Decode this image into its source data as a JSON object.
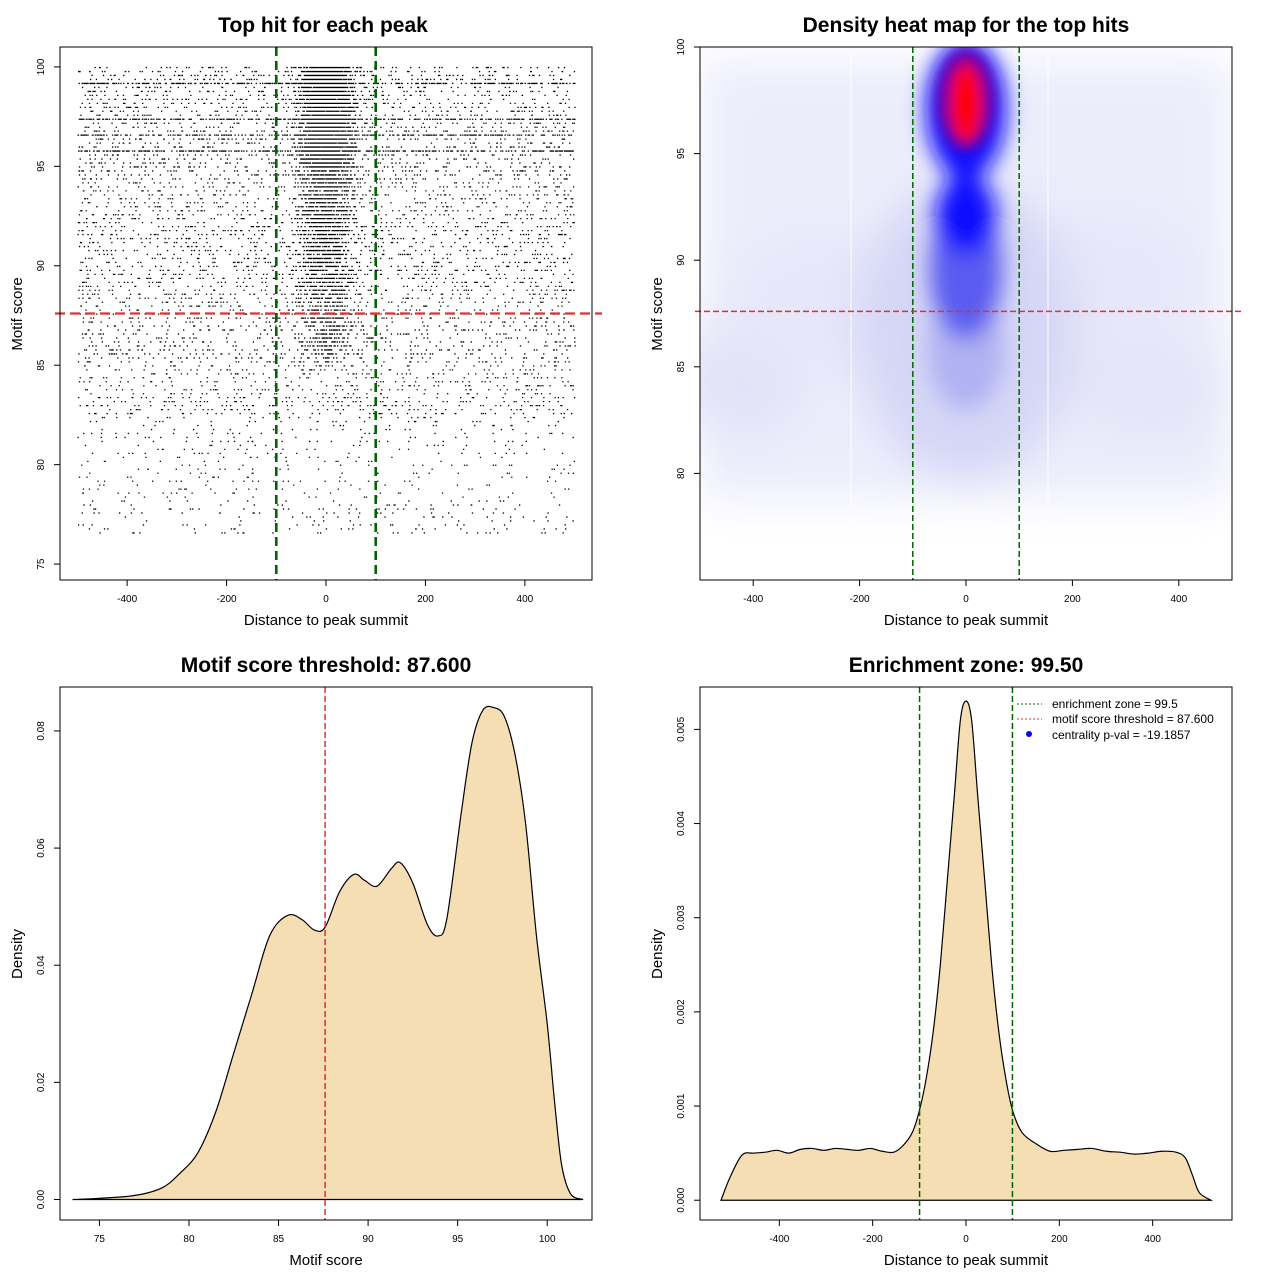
{
  "figure": {
    "panels": [
      {
        "title": "Top hit for each peak",
        "xlabel": "Distance to peak summit",
        "ylabel": "Motif score"
      },
      {
        "title": "Density heat map for the top hits",
        "xlabel": "Distance to peak summit",
        "ylabel": "Motif score"
      },
      {
        "title": "Motif score threshold: 87.600",
        "xlabel": "Motif score",
        "ylabel": "Density"
      },
      {
        "title": "Enrichment zone: 99.50",
        "xlabel": "Distance to peak summit",
        "ylabel": "Density"
      }
    ],
    "legend": [
      {
        "label": "enrichment zone = 99.5",
        "color": "#006400",
        "style": "dotted-line"
      },
      {
        "label": "motif score threshold = 87.600",
        "color": "#e03030",
        "style": "dotted-line"
      },
      {
        "label": "centrality p-val = -19.1857",
        "color": "#0000ff",
        "style": "point"
      }
    ],
    "colors": {
      "enrichment": "#006400",
      "threshold": "#e03030",
      "fill": "#f5deb3",
      "heat_low": "#ffffff",
      "heat_mid": "#0000ff",
      "heat_high": "#ff0000"
    }
  },
  "chart_data": [
    {
      "type": "scatter",
      "title": "Top hit for each peak",
      "xlabel": "Distance to peak summit",
      "ylabel": "Motif score",
      "xlim": [
        -535,
        535
      ],
      "ylim": [
        74.2,
        101.0
      ],
      "xticks": [
        -400,
        -200,
        0,
        200,
        400
      ],
      "yticks": [
        75,
        80,
        85,
        90,
        95,
        100
      ],
      "x_range_of_points": [
        -500,
        500
      ],
      "y_range_of_points": [
        76.3,
        100
      ],
      "vlines": [
        -100,
        100
      ],
      "hline": 87.6,
      "grid": false
    },
    {
      "type": "heatmap",
      "title": "Density heat map for the top hits",
      "xlabel": "Distance to peak summit",
      "ylabel": "Motif score",
      "xlim": [
        -500,
        500
      ],
      "ylim": [
        75.0,
        100.0
      ],
      "xticks": [
        -400,
        -200,
        0,
        200,
        400
      ],
      "yticks": [
        80,
        85,
        90,
        95,
        100
      ],
      "hotspot": {
        "x": 0,
        "y": 97.5
      },
      "secondary_hotspot": {
        "x": 0,
        "y": 92
      },
      "vlines": [
        -100,
        100
      ],
      "hline": 87.6,
      "grid": false
    },
    {
      "type": "area",
      "title": "Motif score threshold: 87.600",
      "xlabel": "Motif score",
      "ylabel": "Density",
      "xlim": [
        72.8,
        102.5
      ],
      "ylim": [
        -0.0035,
        0.0875
      ],
      "xticks": [
        75,
        80,
        85,
        90,
        95,
        100
      ],
      "yticks": [
        0.0,
        0.02,
        0.04,
        0.06,
        0.08
      ],
      "ytick_labels": [
        "0.00",
        "0.02",
        "0.04",
        "0.06",
        "0.08"
      ],
      "x": [
        73.5,
        75,
        77,
        78.5,
        79.5,
        80.5,
        81.5,
        82.5,
        83.5,
        84.5,
        85.5,
        86.3,
        87,
        87.6,
        88.4,
        89.2,
        89.8,
        90.5,
        91.3,
        91.8,
        92.5,
        93.3,
        93.9,
        94.4,
        95.2,
        95.8,
        96.4,
        97.0,
        97.6,
        98.2,
        98.8,
        99.4,
        100.0,
        100.4,
        100.8,
        101.3,
        102.0
      ],
      "y": [
        0.0,
        0.0002,
        0.0007,
        0.002,
        0.0045,
        0.008,
        0.015,
        0.025,
        0.035,
        0.045,
        0.0485,
        0.0478,
        0.046,
        0.0465,
        0.0525,
        0.0555,
        0.0545,
        0.0535,
        0.0565,
        0.0575,
        0.054,
        0.047,
        0.045,
        0.048,
        0.066,
        0.078,
        0.0835,
        0.084,
        0.0825,
        0.076,
        0.064,
        0.045,
        0.03,
        0.017,
        0.006,
        0.001,
        0.0
      ],
      "vline": 87.6,
      "grid": false
    },
    {
      "type": "area",
      "title": "Enrichment zone: 99.50",
      "xlabel": "Distance to peak summit",
      "ylabel": "Density",
      "xlim": [
        -570,
        570
      ],
      "ylim": [
        -0.00021,
        0.00545
      ],
      "xticks": [
        -400,
        -200,
        0,
        200,
        400
      ],
      "yticks": [
        0.0,
        0.001,
        0.002,
        0.003,
        0.004,
        0.005
      ],
      "ytick_labels": [
        "0.000",
        "0.001",
        "0.002",
        "0.003",
        "0.004",
        "0.005"
      ],
      "x": [
        -525,
        -505,
        -480,
        -455,
        -430,
        -405,
        -380,
        -355,
        -330,
        -305,
        -280,
        -255,
        -230,
        -205,
        -180,
        -155,
        -135,
        -115,
        -100,
        -85,
        -70,
        -55,
        -40,
        -25,
        -12,
        0,
        12,
        25,
        40,
        55,
        70,
        85,
        100,
        120,
        150,
        180,
        210,
        240,
        270,
        300,
        330,
        360,
        390,
        420,
        450,
        470,
        485,
        500,
        525
      ],
      "y": [
        0.0,
        0.00025,
        0.00048,
        0.0005,
        0.00051,
        0.00053,
        0.0005,
        0.00054,
        0.00055,
        0.00053,
        0.00055,
        0.00054,
        0.00053,
        0.00055,
        0.00052,
        0.00051,
        0.00058,
        0.00072,
        0.00095,
        0.0013,
        0.0018,
        0.0025,
        0.0034,
        0.0043,
        0.0051,
        0.0053,
        0.0051,
        0.0043,
        0.0034,
        0.0025,
        0.0018,
        0.0013,
        0.00095,
        0.00072,
        0.0006,
        0.00052,
        0.00053,
        0.00054,
        0.00055,
        0.00052,
        0.00051,
        0.00049,
        0.0005,
        0.00052,
        0.00051,
        0.00045,
        0.00027,
        8e-05,
        0.0
      ],
      "vlines": [
        -99.5,
        99.5
      ],
      "legend_position": "top-right",
      "grid": false
    }
  ]
}
